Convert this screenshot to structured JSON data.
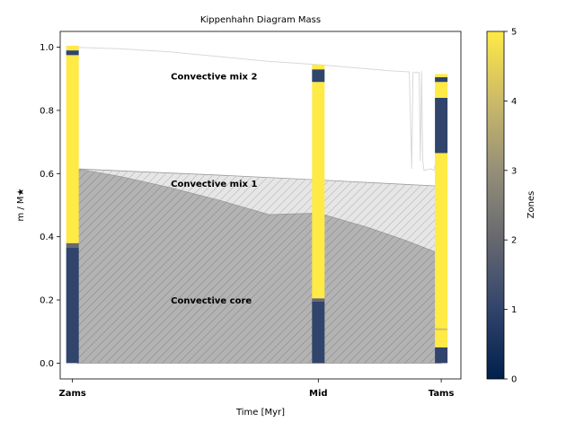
{
  "chart_data": {
    "type": "area",
    "title": "Kippenhahn Diagram Mass",
    "xlabel": "Time [Myr]",
    "ylabel": "m / M★",
    "ylim": [
      -0.05,
      1.05
    ],
    "yticks": [
      0.0,
      0.2,
      0.4,
      0.6,
      0.8,
      1.0
    ],
    "ytick_labels": [
      "0.0",
      "0.2",
      "0.4",
      "0.6",
      "0.8",
      "1.0"
    ],
    "x_positions": [
      0,
      1,
      1.5
    ],
    "xlim": [
      -0.05,
      1.58
    ],
    "xtick_labels": [
      "Zams",
      "Mid",
      "Tams"
    ],
    "regions": [
      {
        "label": "Convective core",
        "label_at": [
          0.4,
          0.2
        ],
        "fill": "#b3b3b3",
        "hatched": true,
        "upper": [
          [
            0.02,
            0.615
          ],
          [
            0.2,
            0.59
          ],
          [
            0.4,
            0.555
          ],
          [
            0.6,
            0.515
          ],
          [
            0.8,
            0.47
          ],
          [
            1.0,
            0.475
          ],
          [
            1.2,
            0.43
          ],
          [
            1.35,
            0.39
          ],
          [
            1.5,
            0.345
          ]
        ]
      },
      {
        "label": "Convective mix 1",
        "label_at": [
          0.4,
          0.57
        ],
        "fill": "#e6e6e6",
        "hatched": true,
        "upper": [
          [
            0.02,
            0.615
          ],
          [
            0.3,
            0.605
          ],
          [
            0.6,
            0.595
          ],
          [
            1.0,
            0.58
          ],
          [
            1.2,
            0.572
          ],
          [
            1.5,
            0.56
          ]
        ]
      }
    ],
    "surface_line": {
      "color": "#d9d9d9",
      "points": [
        [
          0.0,
          1.0
        ],
        [
          0.2,
          0.995
        ],
        [
          0.4,
          0.985
        ],
        [
          0.6,
          0.97
        ],
        [
          0.8,
          0.955
        ],
        [
          1.0,
          0.945
        ],
        [
          1.15,
          0.935
        ],
        [
          1.3,
          0.925
        ],
        [
          1.37,
          0.922
        ],
        [
          1.38,
          0.615
        ],
        [
          1.385,
          0.92
        ],
        [
          1.41,
          0.92
        ],
        [
          1.415,
          0.64
        ],
        [
          1.42,
          0.925
        ],
        [
          1.425,
          0.64
        ],
        [
          1.43,
          0.61
        ],
        [
          1.46,
          0.615
        ],
        [
          1.47,
          0.61
        ],
        [
          1.48,
          0.645
        ],
        [
          1.485,
          0.615
        ],
        [
          1.49,
          0.66
        ],
        [
          1.5,
          0.62
        ]
      ]
    },
    "annotations": [
      {
        "text": "Convective mix 2",
        "at": [
          0.4,
          0.91
        ]
      }
    ],
    "zone_bars": [
      {
        "x": 0,
        "segments": [
          [
            0.0,
            0.365,
            1
          ],
          [
            0.365,
            0.38,
            2
          ],
          [
            0.38,
            0.975,
            5
          ],
          [
            0.975,
            0.99,
            1
          ],
          [
            0.99,
            1.005,
            5
          ]
        ]
      },
      {
        "x": 1,
        "segments": [
          [
            0.0,
            0.195,
            1
          ],
          [
            0.195,
            0.205,
            2
          ],
          [
            0.205,
            0.89,
            5
          ],
          [
            0.89,
            0.93,
            1
          ],
          [
            0.93,
            0.945,
            5
          ]
        ]
      },
      {
        "x": 1.5,
        "segments": [
          [
            0.0,
            0.05,
            1
          ],
          [
            0.05,
            0.105,
            5
          ],
          [
            0.105,
            0.11,
            4
          ],
          [
            0.11,
            0.665,
            5
          ],
          [
            0.665,
            0.84,
            1
          ],
          [
            0.84,
            0.89,
            5
          ],
          [
            0.89,
            0.905,
            1
          ],
          [
            0.905,
            0.915,
            5
          ]
        ]
      }
    ],
    "colorbar": {
      "label": "Zones",
      "colormap": "cividis",
      "range": [
        0,
        5
      ],
      "ticks": [
        "0",
        "1",
        "2",
        "3",
        "4",
        "5"
      ]
    }
  }
}
